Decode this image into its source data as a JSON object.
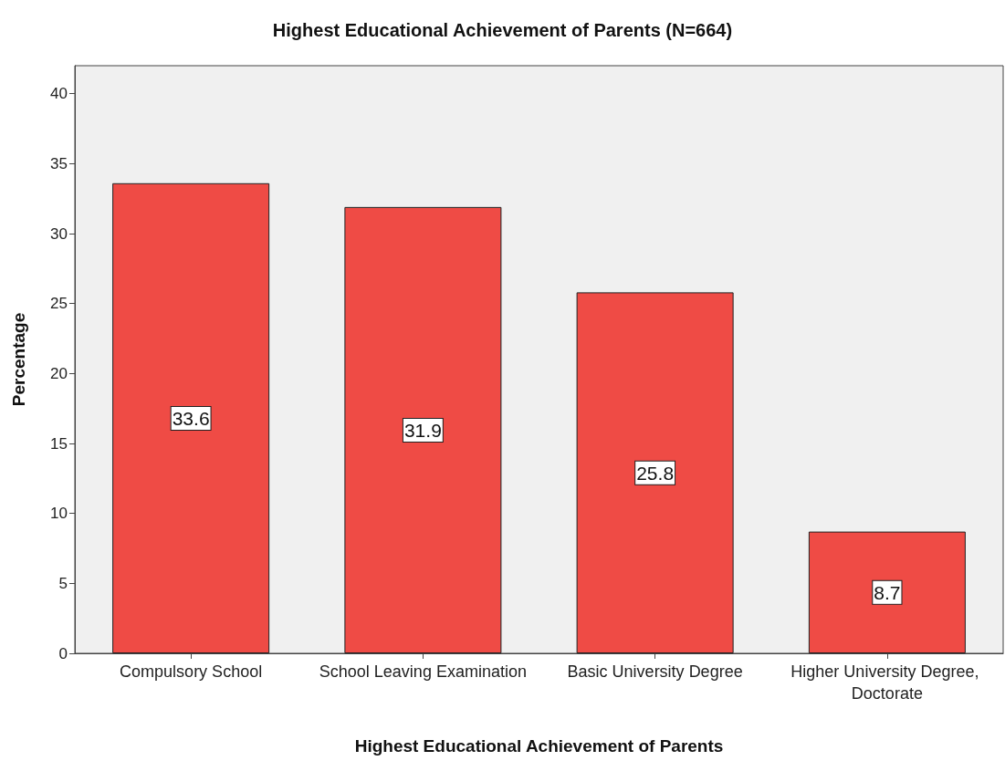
{
  "chart_data": {
    "type": "bar",
    "title": "Highest Educational Achievement of Parents (N=664)",
    "xlabel": "Highest Educational Achievement of Parents",
    "ylabel": "Percentage",
    "categories": [
      "Compulsory School",
      "School Leaving Examination",
      "Basic University Degree",
      "Higher University Degree, Doctorate"
    ],
    "values": [
      33.6,
      31.9,
      25.8,
      8.7
    ],
    "color": "#ef4b45",
    "ylim": [
      0,
      42
    ],
    "yticks": [
      0,
      5,
      10,
      15,
      20,
      25,
      30,
      35,
      40
    ],
    "data_labels": true
  }
}
